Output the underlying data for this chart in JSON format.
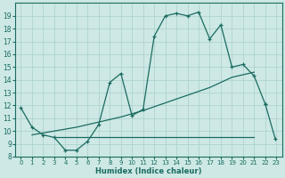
{
  "xlabel": "Humidex (Indice chaleur)",
  "bg_color": "#cde8e5",
  "line_color": "#1a6b60",
  "grid_color": "#aed4d0",
  "xlim": [
    -0.5,
    23.5
  ],
  "ylim": [
    8,
    20
  ],
  "yticks": [
    8,
    9,
    10,
    11,
    12,
    13,
    14,
    15,
    16,
    17,
    18,
    19
  ],
  "xticks": [
    0,
    1,
    2,
    3,
    4,
    5,
    6,
    7,
    8,
    9,
    10,
    11,
    12,
    13,
    14,
    15,
    16,
    17,
    18,
    19,
    20,
    21,
    22,
    23
  ],
  "curve1_x": [
    0,
    1,
    2,
    3,
    4,
    5,
    6,
    7,
    8,
    9,
    10,
    11,
    12,
    13,
    14,
    15,
    16,
    17,
    18,
    19,
    20,
    21,
    22
  ],
  "curve1_y": [
    11.8,
    10.3,
    9.7,
    9.5,
    8.5,
    8.5,
    9.2,
    10.5,
    13.8,
    14.5,
    11.2,
    11.7,
    17.4,
    19.0,
    19.2,
    19.0,
    19.3,
    17.2,
    18.3,
    15.0,
    15.2,
    14.3,
    12.1
  ],
  "curve2_x": [
    1,
    3,
    5,
    7,
    9,
    11,
    13,
    15,
    17,
    19,
    21
  ],
  "curve2_y": [
    9.7,
    10.0,
    10.3,
    10.7,
    11.1,
    11.6,
    12.2,
    12.8,
    13.4,
    14.2,
    14.6
  ],
  "curve3_x": [
    3,
    6,
    9,
    12,
    15,
    18,
    21
  ],
  "curve3_y": [
    9.5,
    9.5,
    9.5,
    9.5,
    9.5,
    9.5,
    9.5
  ],
  "curve4_x": [
    22
  ],
  "curve4_y": [
    9.4
  ]
}
